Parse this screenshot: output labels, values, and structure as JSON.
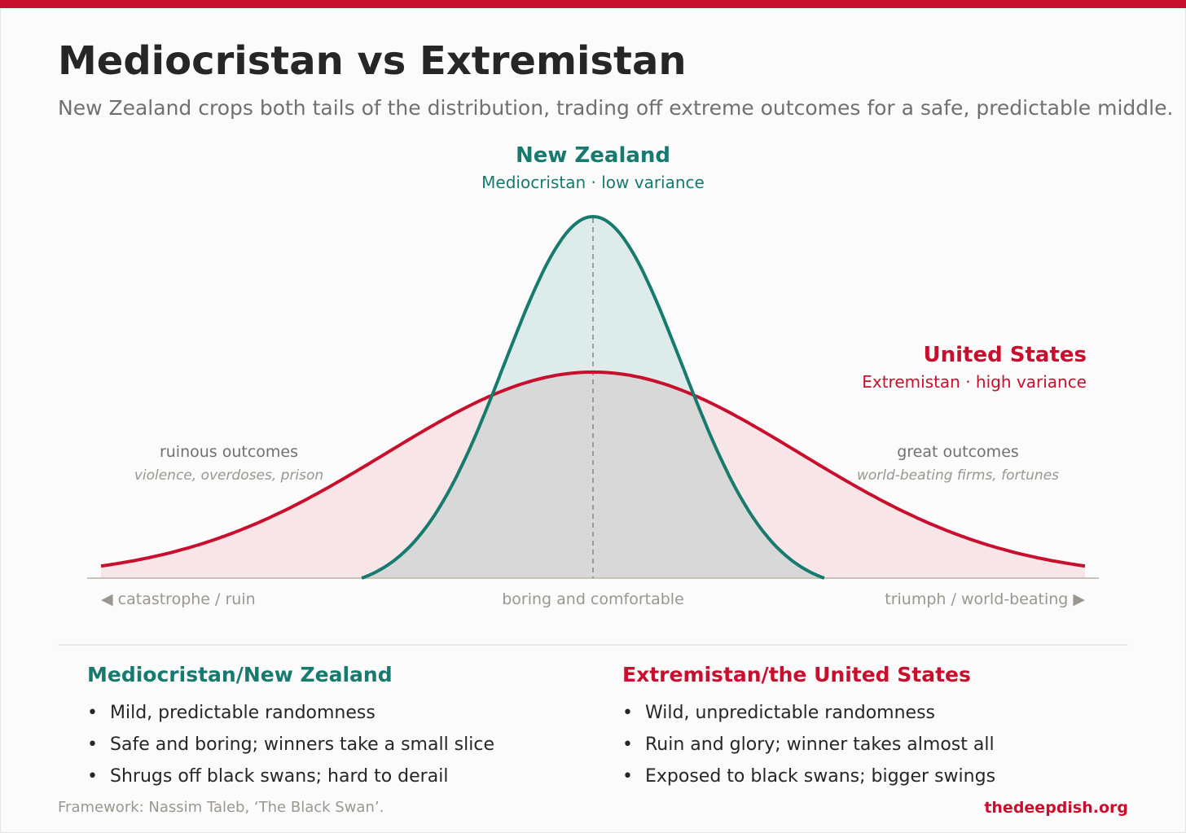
{
  "header": {
    "title": "Mediocristan vs Extremistan",
    "subtitle": "New Zealand crops both tails of the distribution, trading off extreme outcomes for a safe, predictable middle."
  },
  "colors": {
    "accent": "#c8102e",
    "nz": "#167a6e",
    "us": "#c8102e",
    "nz_fill": "#ddeceb",
    "us_fill": "#f8e5e8",
    "overlap_fill": "#d8d8d8"
  },
  "chart_data": {
    "type": "area",
    "title": "",
    "xlabel": "",
    "ylabel": "",
    "x_range": [
      -1,
      1
    ],
    "series": [
      {
        "name": "New Zealand",
        "sublabel": "Mediocristan · low variance",
        "mean": 0,
        "sd": 0.18,
        "tail_cutoff": 0.47,
        "relative_peak": 1.0
      },
      {
        "name": "United States",
        "sublabel": "Extremistan · high variance",
        "mean": 0,
        "sd": 0.42,
        "tail_cutoff": null,
        "relative_peak": 0.57
      }
    ],
    "annotations": {
      "left_tail": {
        "label": "ruinous outcomes",
        "detail": "violence, overdoses, prison"
      },
      "right_tail": {
        "label": "great outcomes",
        "detail": "world-beating firms, fortunes"
      }
    },
    "axis_labels": {
      "left": "◀ catastrophe / ruin",
      "center": "boring and comfortable",
      "right": "triumph / world-beating ▶"
    },
    "grid": false,
    "legend": "direct labels"
  },
  "columns": {
    "nz": {
      "title": "Mediocristan/New Zealand",
      "bullets": [
        "Mild, predictable randomness",
        "Safe and boring; winners take a small slice",
        "Shrugs off black swans; hard to derail"
      ]
    },
    "us": {
      "title": "Extremistan/the United States",
      "bullets": [
        "Wild, unpredictable randomness",
        "Ruin and glory; winner takes almost all",
        "Exposed to black swans; bigger swings"
      ]
    }
  },
  "bullet_char": "•",
  "footer": {
    "source": "Framework: Nassim Taleb, ‘The Black Swan’.",
    "site": "thedeepdish.org"
  }
}
